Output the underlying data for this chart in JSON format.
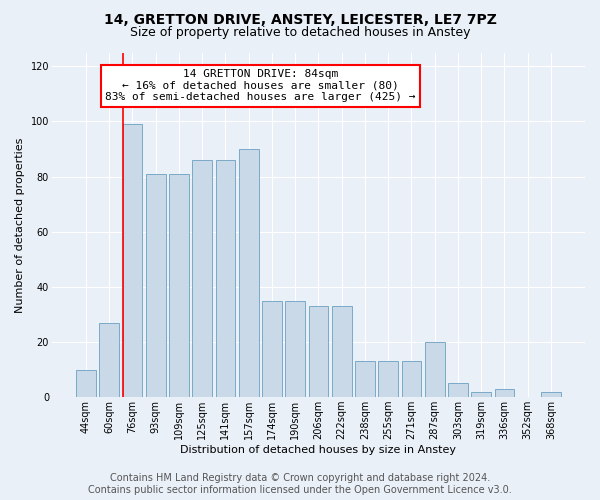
{
  "title": "14, GRETTON DRIVE, ANSTEY, LEICESTER, LE7 7PZ",
  "subtitle": "Size of property relative to detached houses in Anstey",
  "xlabel": "Distribution of detached houses by size in Anstey",
  "ylabel": "Number of detached properties",
  "bar_labels": [
    "44sqm",
    "60sqm",
    "76sqm",
    "93sqm",
    "109sqm",
    "125sqm",
    "141sqm",
    "157sqm",
    "174sqm",
    "190sqm",
    "206sqm",
    "222sqm",
    "238sqm",
    "255sqm",
    "271sqm",
    "287sqm",
    "303sqm",
    "319sqm",
    "336sqm",
    "352sqm",
    "368sqm"
  ],
  "bar_values": [
    10,
    27,
    99,
    81,
    81,
    86,
    86,
    90,
    35,
    35,
    33,
    33,
    13,
    13,
    13,
    20,
    5,
    2,
    3,
    0,
    2
  ],
  "bar_color": "#c9d9e8",
  "bar_edge_color": "#7aaac8",
  "property_line_index": 2,
  "property_line_color": "red",
  "annotation_line1": "14 GRETTON DRIVE: 84sqm",
  "annotation_line2": "← 16% of detached houses are smaller (80)",
  "annotation_line3": "83% of semi-detached houses are larger (425) →",
  "annotation_box_color": "white",
  "annotation_box_edge_color": "red",
  "ylim": [
    0,
    125
  ],
  "yticks": [
    0,
    20,
    40,
    60,
    80,
    100,
    120
  ],
  "footer1": "Contains HM Land Registry data © Crown copyright and database right 2024.",
  "footer2": "Contains public sector information licensed under the Open Government Licence v3.0.",
  "background_color": "#eaf0f8",
  "grid_color": "white",
  "title_fontsize": 10,
  "subtitle_fontsize": 9,
  "axis_label_fontsize": 8,
  "tick_fontsize": 7,
  "annotation_fontsize": 8,
  "footer_fontsize": 7
}
